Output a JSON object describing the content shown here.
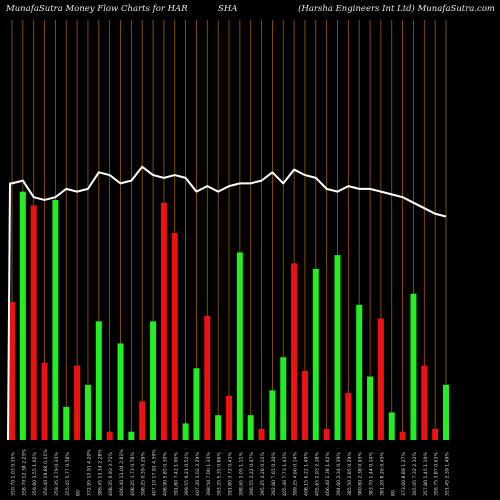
{
  "header": {
    "left": "MunafaSutra  Money Flow  Charts for HAR",
    "middle": "SHA",
    "right": "(Harsha  Engineers Int Ltd) MunafaSutra.com"
  },
  "colors": {
    "background": "#000000",
    "up": "#22ee22",
    "down": "#ee1111",
    "grid": "#a45a00",
    "line": "#ffffff"
  },
  "chart_data": {
    "type": "bar",
    "title": "MunafaSutra  Money Flow  Charts for HARSHA",
    "subtitle": "(Harsha  Engineers Int Ltd) MunafaSutra.com",
    "x": [
      "350.70 1.03 0.35%",
      "358.70 12.38 2.23%",
      "359.80 3.55 1.02%",
      "356.40 19.86 0.11%",
      "359.35 3.79 0.33%",
      "355.45 5.77 0.58%",
      "80",
      "372.95 13.91 4.20%",
      "386.45 13.14 2.28%",
      "408.35 0.93 3.71%",
      "406.40 13.04 2.81%",
      "408.25 3.73 0.78%",
      "398.25 0.39 0.29%",
      "407.10 17.91 4.39%",
      "408.90 5.85 0.30%",
      "391.80 7.42 1.00%",
      "399.55 9.21 0.52%",
      "407.20 3.02 3.29%",
      "398.50 7.00 1.33%",
      "393.35 5.35 0.86%",
      "391.80 3.72 0.43%",
      "398.65 3.05 1.11%",
      "396.55 2.22 0.47%",
      "395.25 4.28 0.11%",
      "392.80 7.65 0.30%",
      "405.40 7.73 1.43%",
      "399.25 4.66 0.14%",
      "408.15 6.22 1.49%",
      "405.65 2.93 2.18%",
      "406.40 1.38 1.62%",
      "394.60 2.34 0.39%",
      "385.50 2.85 0.29%",
      "380.80 2.38 0.93%",
      "383.70 1.44 0.14%",
      "381.20 8.26 0.45%",
      "80",
      "373.60 8.89 1.27%",
      "365.05 7.32 2.32%",
      "357.80 1.45 1.19%",
      "356.75 3.87 0.63%",
      "351.45 2.39 1.49%"
    ],
    "bar_values": [
      50,
      90,
      85,
      28,
      87,
      12,
      27,
      20,
      43,
      3,
      35,
      3,
      14,
      43,
      86,
      75,
      6,
      26,
      45,
      9,
      16,
      68,
      9,
      4,
      18,
      30,
      64,
      25,
      62,
      4,
      67,
      17,
      49,
      23,
      44,
      10,
      3,
      53,
      27,
      4,
      20
    ],
    "bar_colors": [
      "down",
      "up",
      "down",
      "down",
      "up",
      "up",
      "down",
      "up",
      "up",
      "down",
      "up",
      "up",
      "down",
      "up",
      "down",
      "down",
      "up",
      "up",
      "down",
      "up",
      "down",
      "up",
      "up",
      "down",
      "up",
      "up",
      "down",
      "down",
      "up",
      "down",
      "up",
      "down",
      "up",
      "up",
      "down",
      "up",
      "down",
      "up",
      "down",
      "down",
      "up"
    ],
    "line_values": [
      93,
      94,
      88,
      87,
      88,
      91,
      90,
      91,
      97,
      96,
      93,
      94,
      99,
      96,
      95,
      96,
      95,
      90,
      92,
      90,
      92,
      93,
      93,
      94,
      97,
      93,
      98,
      96,
      95,
      91,
      90,
      92,
      91,
      91,
      90,
      89,
      88,
      86,
      84,
      82,
      81
    ],
    "line_start_value": 93,
    "line_start_low_value": 0,
    "ylim": [
      0,
      158
    ],
    "grid": true
  }
}
